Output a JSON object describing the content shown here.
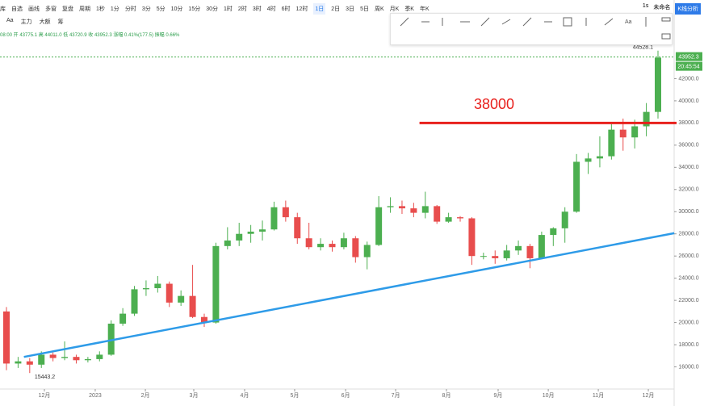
{
  "toolbar": {
    "items": [
      "库",
      "自选",
      "画线",
      "多窗",
      "复盘",
      "周期",
      "1秒",
      "1分",
      "分时",
      "3分",
      "5分",
      "10分",
      "15分",
      "30分",
      "1时",
      "2时",
      "3时",
      "4时",
      "6时",
      "12时",
      "1日",
      "2日",
      "3日",
      "5日",
      "周K",
      "月K",
      "季K",
      "年K"
    ],
    "active": "1日",
    "tools": [
      "Aa",
      "主力",
      "大额",
      "筹"
    ],
    "right": [
      "1s",
      "未命名",
      "K线分析"
    ]
  },
  "chart_data": {
    "type": "candlestick",
    "info": "08:00 开 43775.1 高 44011.0 低 43720.9 收 43952.3 涨幅 0.41%(177.5) 振幅 0.66%",
    "open": [
      21000,
      16300,
      16500,
      16200,
      17100,
      16800,
      16900,
      16600,
      16700,
      17100,
      19900,
      20800,
      23000,
      23100,
      23500,
      21800,
      22400,
      20500,
      20000,
      26900,
      27400,
      28000,
      28200,
      28400,
      30400,
      29500,
      27600,
      26800,
      27100,
      26800,
      27600,
      25900,
      27000,
      30400,
      30500,
      30300,
      29900,
      30500,
      29100,
      29500,
      29400,
      26000,
      26000,
      25800,
      26500,
      26900,
      25800,
      27900,
      28500,
      30000,
      34500,
      34800,
      35000,
      37400,
      36700,
      37700,
      39000
    ],
    "high": [
      21400,
      16900,
      16800,
      17400,
      17300,
      18300,
      17100,
      16900,
      17400,
      20200,
      21300,
      23300,
      23800,
      24200,
      23700,
      22900,
      25200,
      20800,
      27200,
      28600,
      29000,
      28800,
      29200,
      30900,
      31000,
      29900,
      29000,
      27600,
      27400,
      28100,
      27800,
      27300,
      31400,
      31300,
      31000,
      30800,
      31800,
      30600,
      29900,
      29600,
      29500,
      26300,
      26500,
      27000,
      27400,
      27100,
      28200,
      28600,
      30400,
      35200,
      35300,
      36800,
      37900,
      38400,
      38300,
      39800,
      44528.1
    ],
    "low": [
      15700,
      15900,
      15443.2,
      15900,
      16500,
      16600,
      16300,
      16400,
      16500,
      17000,
      19700,
      20600,
      22400,
      22700,
      21400,
      21500,
      20400,
      19600,
      19900,
      26600,
      26900,
      27200,
      27400,
      28300,
      29100,
      27100,
      26600,
      26500,
      26400,
      26600,
      25400,
      24800,
      26900,
      29900,
      29800,
      29500,
      29400,
      28900,
      29000,
      29100,
      25200,
      25700,
      25300,
      25600,
      26100,
      24900,
      25700,
      26900,
      27200,
      29900,
      33400,
      34000,
      34700,
      35500,
      35700,
      36800,
      38400
    ],
    "close": [
      16300,
      16500,
      16200,
      17100,
      16800,
      16900,
      16600,
      16700,
      17100,
      19900,
      20800,
      23000,
      23100,
      23500,
      21800,
      22400,
      20500,
      20000,
      26900,
      27400,
      28000,
      28200,
      28400,
      30400,
      29500,
      27600,
      26800,
      27100,
      26800,
      27600,
      25900,
      27000,
      30400,
      30500,
      30300,
      29900,
      30500,
      29100,
      29500,
      29400,
      26000,
      26000,
      25800,
      26500,
      26900,
      25800,
      27900,
      28500,
      30000,
      34500,
      34800,
      35000,
      37400,
      36700,
      37700,
      39000,
      43900
    ],
    "up_color": "#4caf50",
    "down_color": "#e84d4d",
    "ylim": [
      14000,
      45600
    ],
    "yticks": [
      {
        "value": 16000,
        "label": "16000.0"
      },
      {
        "value": 18000,
        "label": "18000.0"
      },
      {
        "value": 20000,
        "label": "20000.0"
      },
      {
        "value": 22000,
        "label": "22000.0"
      },
      {
        "value": 24000,
        "label": "24000.0"
      },
      {
        "value": 26000,
        "label": "26000.0"
      },
      {
        "value": 28000,
        "label": "28000.0"
      },
      {
        "value": 30000,
        "label": "30000.0"
      },
      {
        "value": 32000,
        "label": "32000.0"
      },
      {
        "value": 34000,
        "label": "34000.0"
      },
      {
        "value": 36000,
        "label": "36000.0"
      },
      {
        "value": 38000,
        "label": "38000.0"
      },
      {
        "value": 40000,
        "label": "40000.0"
      },
      {
        "value": 42000,
        "label": "42000.0"
      }
    ],
    "xticks": [
      {
        "value": 3.26,
        "label": "12月"
      },
      {
        "value": 7.63,
        "label": "2023"
      },
      {
        "value": 11.94,
        "label": "2月"
      },
      {
        "value": 16.1,
        "label": "3月"
      },
      {
        "value": 20.47,
        "label": "4月"
      },
      {
        "value": 24.77,
        "label": "5月"
      },
      {
        "value": 29.15,
        "label": "6月"
      },
      {
        "value": 33.45,
        "label": "7月"
      },
      {
        "value": 37.82,
        "label": "8月"
      },
      {
        "value": 42.26,
        "label": "9月"
      },
      {
        "value": 46.57,
        "label": "10月"
      },
      {
        "value": 50.87,
        "label": "11月"
      },
      {
        "value": 55.17,
        "label": "12月"
      }
    ],
    "last_price": {
      "value": 43952.3,
      "label": "43952.3",
      "time": "20:45:54"
    },
    "high_label": "44528.1",
    "low_label": "15443.2",
    "level": {
      "value": 38000,
      "label": "38000",
      "from": 35.5,
      "to": 57.6,
      "color": "#e8201c"
    },
    "trendline": {
      "from": [
        1.5,
        16900
      ],
      "to": [
        57.4,
        28060
      ],
      "color": "#2e9be8"
    }
  }
}
